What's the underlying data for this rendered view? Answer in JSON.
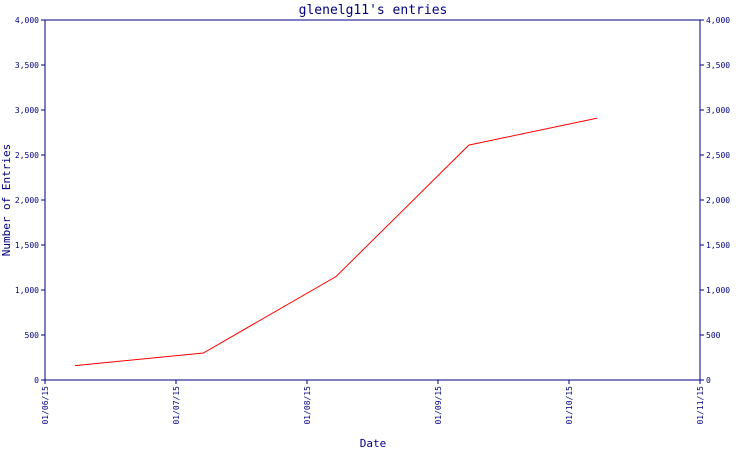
{
  "chart_data": {
    "type": "line",
    "title": "glenelg11's entries",
    "xlabel": "Date",
    "ylabel": "Number of Entries",
    "y_ticks": [
      "0",
      "500",
      "1,000",
      "1,500",
      "2,000",
      "2,500",
      "3,000",
      "3,500",
      "4,000"
    ],
    "x_ticks": [
      "01/06/15",
      "01/07/15",
      "01/08/15",
      "01/09/15",
      "01/10/15",
      "01/11/15"
    ],
    "ylim": [
      0,
      4000
    ],
    "xlim": [
      "2015-06-01",
      "2015-11-01"
    ],
    "grid": false,
    "colors": {
      "axis": "#000080",
      "series": "#ff0000",
      "background": "#ffffff"
    },
    "series": [
      {
        "x": [
          "2015-06-08",
          "2015-07-08",
          "2015-08-08",
          "2015-09-08",
          "2015-10-08"
        ],
        "values": [
          160,
          300,
          1150,
          2610,
          2910
        ]
      }
    ]
  }
}
